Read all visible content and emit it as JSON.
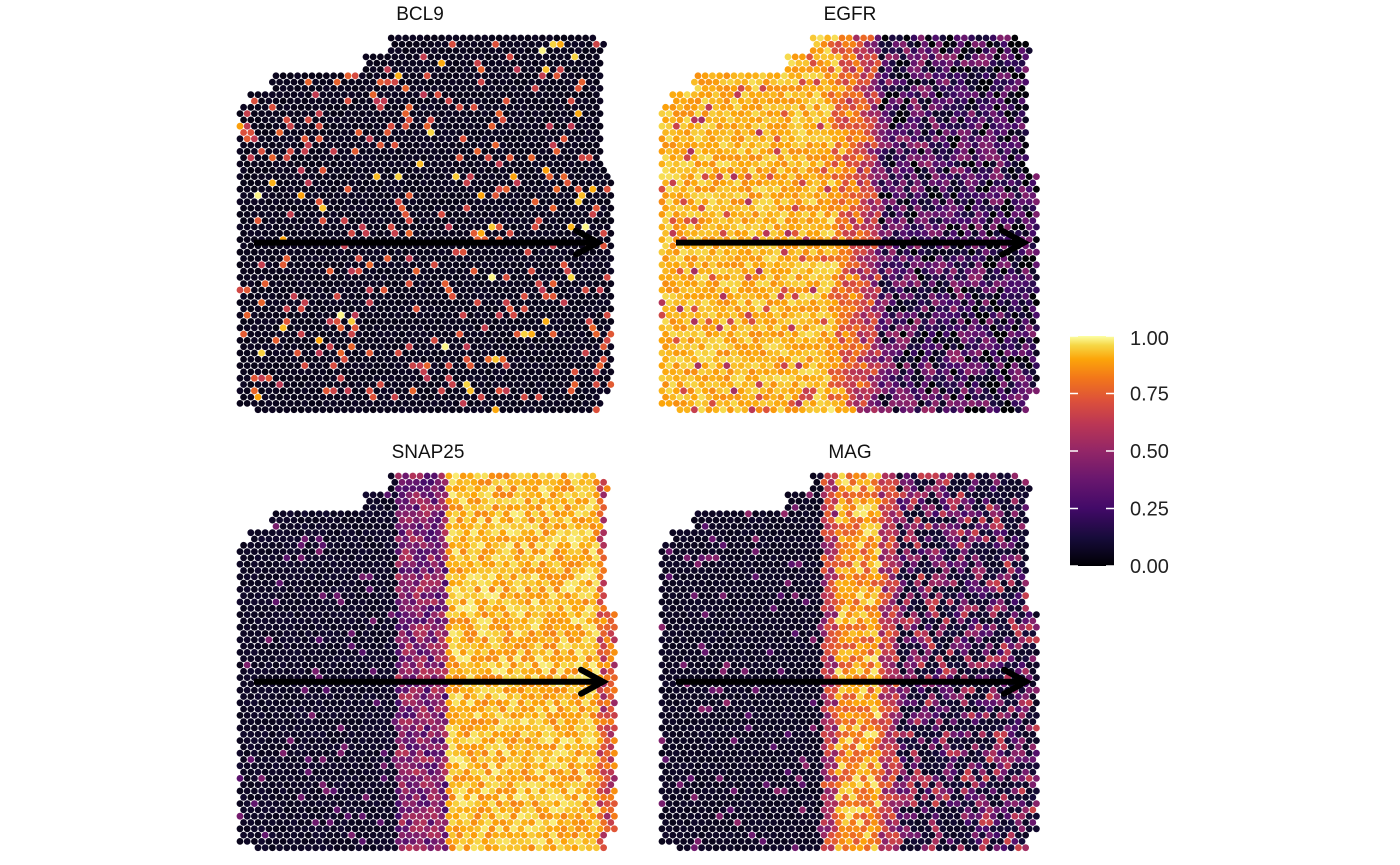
{
  "chart_data": {
    "type": "spatial-scatter",
    "colormap": "inferno",
    "panels": [
      {
        "gene": "BCL9",
        "pattern": "sparse",
        "arrow": {
          "from_x": 0.0,
          "to_x": 1.0,
          "y": 0.55
        }
      },
      {
        "gene": "EGFR",
        "pattern": "left-high",
        "arrow": {
          "from_x": 0.0,
          "to_x": 1.0,
          "y": 0.55
        }
      },
      {
        "gene": "SNAP25",
        "pattern": "right-high",
        "arrow": {
          "from_x": 0.0,
          "to_x": 1.0,
          "y": 0.55
        }
      },
      {
        "gene": "MAG",
        "pattern": "band",
        "arrow": {
          "from_x": 0.0,
          "to_x": 1.0,
          "y": 0.55
        }
      }
    ],
    "legend": {
      "position": "right",
      "ticks": [
        "0.00",
        "0.25",
        "0.50",
        "0.75",
        "1.00"
      ],
      "range": [
        0,
        1
      ]
    }
  }
}
